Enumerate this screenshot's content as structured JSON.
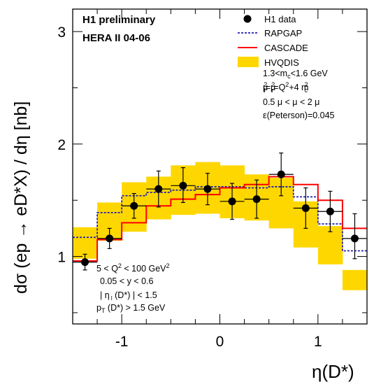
{
  "chart_data": {
    "type": "line",
    "title": "H1 preliminary",
    "subtitle": "HERA II 04-06",
    "xlabel": "η(D*)",
    "ylabel": "dσ (ep → eD*X) / dη [nb]",
    "xlim": [
      -1.5,
      1.5
    ],
    "ylim": [
      0.4,
      3.2
    ],
    "xticks": [
      "-1",
      "0",
      "1"
    ],
    "yticks": [
      "1",
      "2",
      "3"
    ],
    "grid": false,
    "legend_position": "top-right",
    "bin_edges": [
      -1.5,
      -1.25,
      -1.0,
      -0.75,
      -0.5,
      -0.25,
      0.0,
      0.25,
      0.5,
      0.75,
      1.0,
      1.25,
      1.5
    ],
    "series": [
      {
        "name": "H1 data",
        "style": "points",
        "x": [
          -1.375,
          -1.125,
          -0.875,
          -0.625,
          -0.375,
          -0.125,
          0.125,
          0.375,
          0.625,
          0.875,
          1.125,
          1.375
        ],
        "y": [
          0.95,
          1.16,
          1.45,
          1.6,
          1.63,
          1.6,
          1.49,
          1.51,
          1.73,
          1.43,
          1.4,
          1.16
        ],
        "err_low": [
          0.88,
          1.07,
          1.34,
          1.44,
          1.48,
          1.46,
          1.33,
          1.34,
          1.54,
          1.25,
          1.22,
          0.98
        ],
        "err_high": [
          1.02,
          1.25,
          1.56,
          1.76,
          1.79,
          1.74,
          1.65,
          1.68,
          1.92,
          1.61,
          1.58,
          1.38
        ]
      },
      {
        "name": "RAPGAP",
        "style": "dashed-step",
        "color": "#1f1fb4",
        "values": [
          1.17,
          1.39,
          1.54,
          1.57,
          1.59,
          1.62,
          1.62,
          1.61,
          1.62,
          1.53,
          1.29,
          1.05
        ]
      },
      {
        "name": "CASCADE",
        "style": "step",
        "color": "#ff0000",
        "values": [
          0.96,
          1.15,
          1.3,
          1.45,
          1.51,
          1.55,
          1.61,
          1.64,
          1.71,
          1.64,
          1.5,
          1.25
        ]
      },
      {
        "name": "HVQDIS",
        "style": "band",
        "color": "#ffd700",
        "low": [
          0.98,
          1.14,
          1.22,
          1.33,
          1.37,
          1.38,
          1.34,
          1.32,
          1.25,
          1.08,
          0.93,
          0.7
        ],
        "high": [
          1.26,
          1.48,
          1.66,
          1.71,
          1.81,
          1.84,
          1.81,
          1.73,
          1.7,
          1.49,
          1.27,
          0.88
        ]
      }
    ],
    "annotations_right": [
      "1.3<m_c<1.6 GeV",
      "μ_f²=μ_r²=Q²+4 m_c²",
      "0.5 μ < μ < 2 μ",
      "ε(Peterson)=0.045"
    ],
    "annotations_left": [
      "5 < Q² < 100 GeV²",
      "0.05 < y < 0.6",
      "| η (D*) | < 1.5",
      "p_T (D*) > 1.5 GeV"
    ]
  }
}
